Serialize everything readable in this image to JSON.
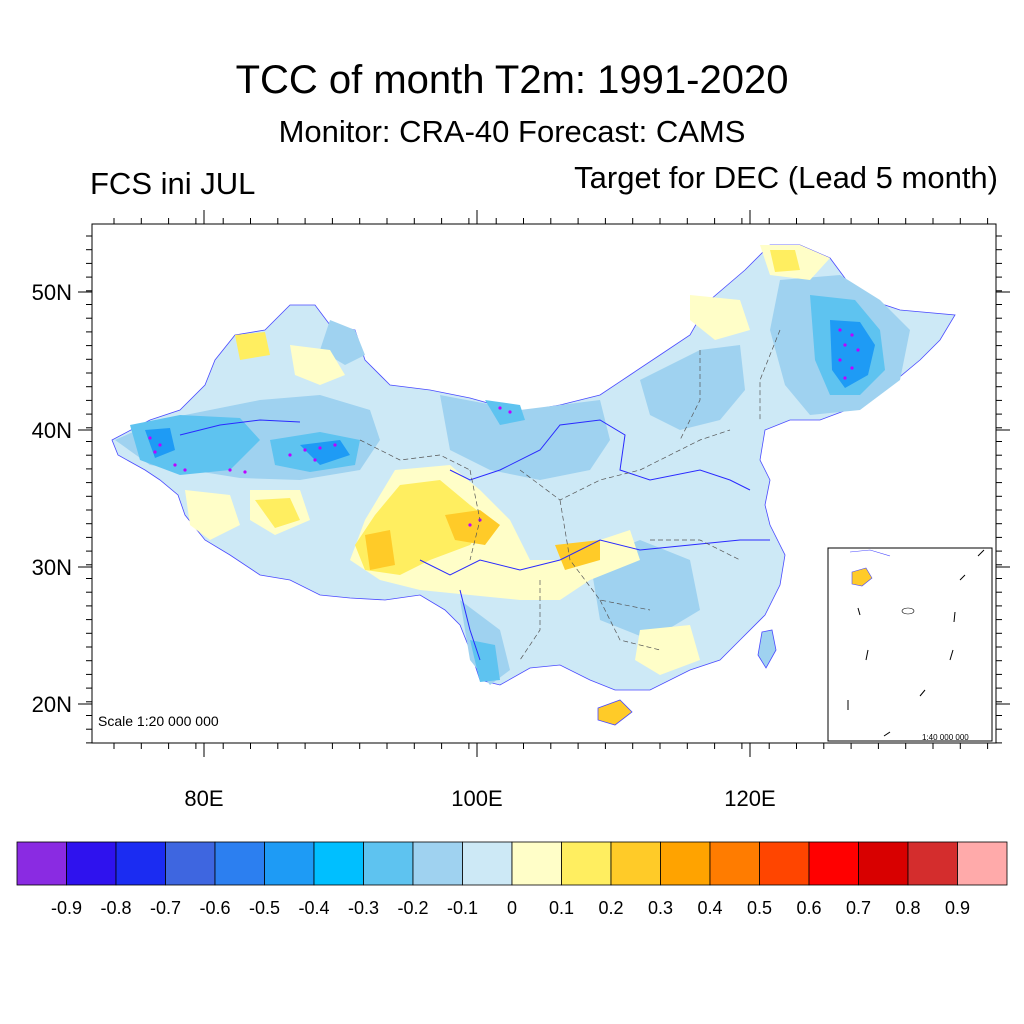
{
  "title": "TCC of month T2m: 1991-2020",
  "subtitle": "Monitor: CRA-40   Forecast: CAMS",
  "left_label": "FCS ini JUL",
  "right_label": "Target for DEC (Lead 5 month)",
  "map": {
    "lat_ticks": [
      "50N",
      "40N",
      "30N",
      "20N"
    ],
    "lon_ticks": [
      "80E",
      "100E",
      "120E"
    ],
    "scale_main": "Scale 1:20 000 000",
    "scale_inset": "1:40 000 000"
  },
  "colorbar": {
    "colors": [
      "#8a2be2",
      "#2f12ee",
      "#1b2cf2",
      "#3e66e0",
      "#2c7ff0",
      "#1e9bf5",
      "#00bfff",
      "#5ec3f0",
      "#9fd2f0",
      "#cde9f6",
      "#fffec8",
      "#ffee60",
      "#ffcb28",
      "#ffa300",
      "#ff7c00",
      "#ff4500",
      "#ff0000",
      "#d80000",
      "#d42d2d",
      "#ffaaaa"
    ],
    "labels": [
      "-0.9",
      "-0.8",
      "-0.7",
      "-0.6",
      "-0.5",
      "-0.4",
      "-0.3",
      "-0.2",
      "-0.1",
      "0",
      "0.1",
      "0.2",
      "0.3",
      "0.4",
      "0.5",
      "0.6",
      "0.7",
      "0.8",
      "0.9"
    ]
  }
}
